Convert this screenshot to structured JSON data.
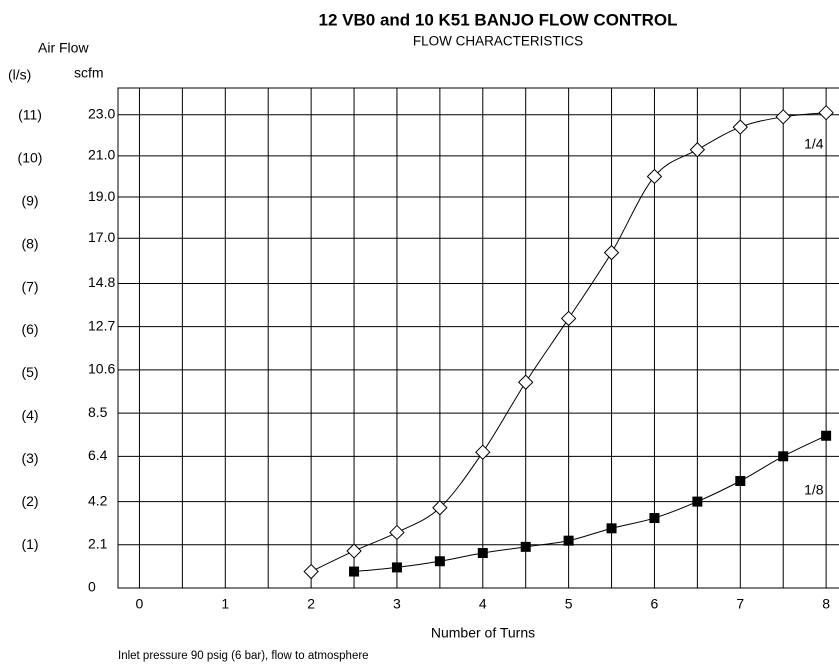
{
  "chart_data": {
    "type": "line",
    "title": "12 VB0 and 10 K51 BANJO FLOW CONTROL",
    "subtitle": "FLOW CHARACTERISTICS",
    "y_axis_title": "Air Flow",
    "y2_unit": "(l/s)",
    "y_unit": "scfm",
    "x_axis_title": "Number of Turns",
    "footnote": "Inlet pressure 90 psig (6 bar), flow to atmosphere",
    "xlim": [
      -0.25,
      8.15
    ],
    "xticks": [
      0,
      1,
      2,
      3,
      4,
      5,
      6,
      7,
      8
    ],
    "x_gridlines": [
      0,
      0.5,
      1,
      1.5,
      2,
      2.5,
      3,
      3.5,
      4,
      4.5,
      5,
      5.5,
      6,
      6.5,
      7,
      7.5,
      8
    ],
    "ylim": [
      0,
      24.3
    ],
    "yticks": [
      0,
      2.1,
      4.2,
      6.4,
      8.5,
      10.6,
      12.7,
      14.8,
      {
        "value": 17,
        "label": "17.0"
      },
      {
        "value": 19,
        "label": "19.0"
      },
      {
        "value": 21,
        "label": "21.0"
      },
      {
        "value": 23,
        "label": "23.0"
      }
    ],
    "y2lim": [
      0,
      11.65
    ],
    "y2ticks": [
      {
        "value": 1,
        "label": "(1)"
      },
      {
        "value": 2,
        "label": "(2)"
      },
      {
        "value": 3,
        "label": "(3)"
      },
      {
        "value": 4,
        "label": "(4)"
      },
      {
        "value": 5,
        "label": "(5)"
      },
      {
        "value": 6,
        "label": "(6)"
      },
      {
        "value": 7,
        "label": "(7)"
      },
      {
        "value": 8,
        "label": "(8)"
      },
      {
        "value": 9,
        "label": "(9)"
      },
      {
        "value": 10,
        "label": "(10)"
      },
      {
        "value": 11,
        "label": "(11)"
      }
    ],
    "grid": true,
    "series": [
      {
        "name": "1/4",
        "color": "#000000",
        "marker": "open-diamond",
        "x": [
          2,
          2.5,
          3,
          3.5,
          4,
          4.5,
          5,
          5.5,
          6,
          6.5,
          7,
          7.5,
          8
        ],
        "values": [
          0.8,
          1.8,
          2.7,
          3.9,
          6.6,
          10.0,
          13.1,
          16.3,
          20.0,
          21.3,
          22.4,
          22.9,
          23.1
        ]
      },
      {
        "name": "1/8",
        "color": "#000000",
        "marker": "filled-square",
        "x": [
          2.5,
          3,
          3.5,
          4,
          4.5,
          5,
          5.5,
          6,
          6.5,
          7,
          7.5,
          8
        ],
        "values": [
          0.8,
          1.0,
          1.3,
          1.7,
          2.0,
          2.3,
          2.9,
          3.4,
          4.2,
          5.2,
          6.4,
          7.4
        ]
      }
    ]
  }
}
